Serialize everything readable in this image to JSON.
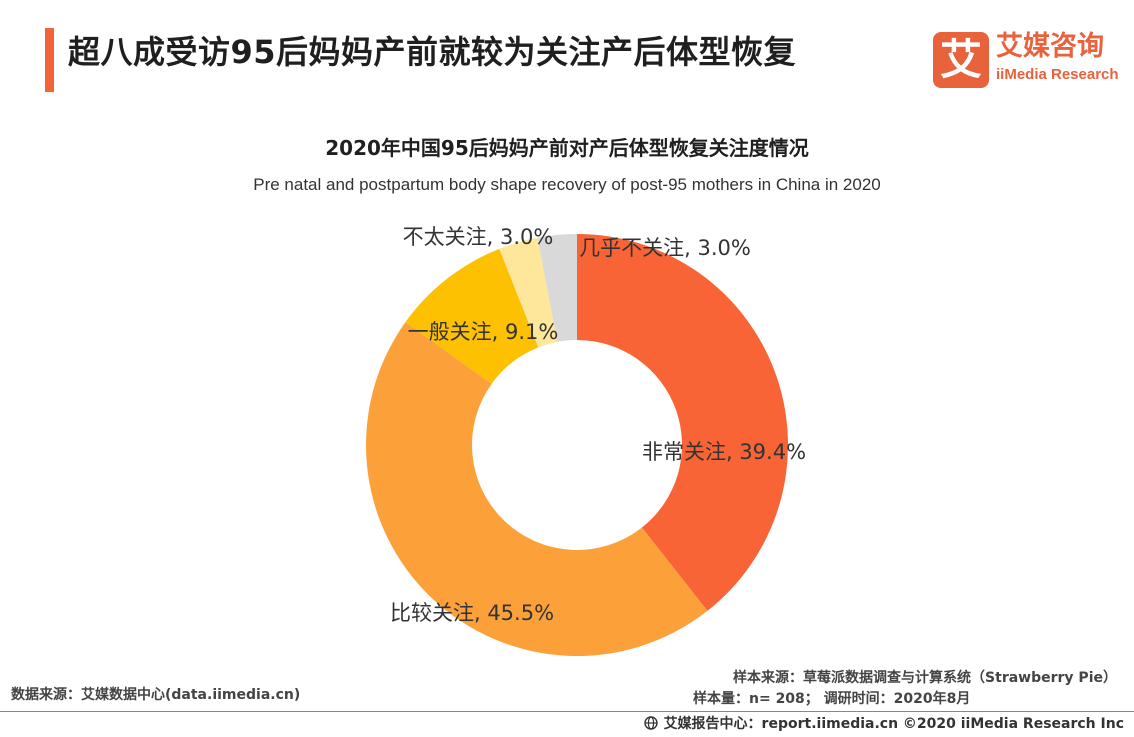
{
  "header": {
    "title": "超八成受访95后妈妈产前就较为关注产后体型恢复",
    "logo_cn": "艾媒咨询",
    "logo_en": "iiMedia Research",
    "logo_mark": "艾"
  },
  "chart_data": {
    "type": "pie",
    "title": "2020年中国95后妈妈产前对产后体型恢复关注度情况",
    "subtitle": "Pre natal and postpartum body shape recovery of post-95 mothers in China in 2020",
    "slices": [
      {
        "label": "非常关注",
        "value": 39.4,
        "text": "非常关注, 39.4%",
        "color": "#f96436"
      },
      {
        "label": "比较关注",
        "value": 45.5,
        "text": "比较关注, 45.5%",
        "color": "#fca13a"
      },
      {
        "label": "一般关注",
        "value": 9.1,
        "text": "一般关注, 9.1%",
        "color": "#fec101"
      },
      {
        "label": "不太关注",
        "value": 3.0,
        "text": "不太关注, 3.0%",
        "color": "#fee69a"
      },
      {
        "label": "几乎不关注",
        "value": 3.0,
        "text": "几乎不关注, 3.0%",
        "color": "#d9d9d9"
      }
    ]
  },
  "footer": {
    "data_source": "数据来源：艾媒数据中心(data.iimedia.cn)",
    "sample_source": "样本来源：草莓派数据调查与计算系统（Strawberry Pie）",
    "sample_size": "样本量：n= 208；  调研时间：2020年8月",
    "copyright": "艾媒报告中心：report.iimedia.cn   ©2020  iiMedia Research  Inc"
  },
  "colors": {
    "accent": "#f4623a",
    "brand": "#e8623c"
  }
}
